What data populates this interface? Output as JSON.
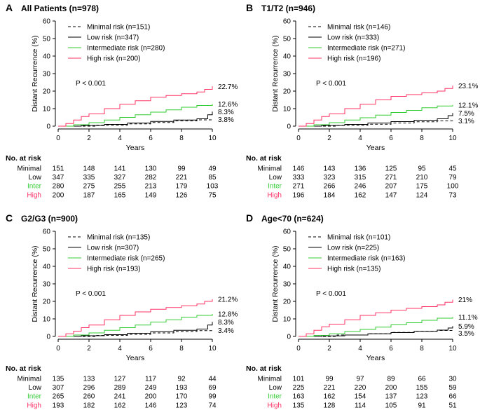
{
  "risk_table_title": "No. at risk",
  "pvalue": "P < 0.001",
  "colors": {
    "minimal": "#000000",
    "low": "#000000",
    "inter": "#33cc33",
    "high": "#ff3366"
  },
  "chart_data": [
    {
      "type": "line",
      "panel": "A",
      "title": "All Patients (n=978)",
      "xlabel": "Years",
      "ylabel": "Distant Recurrence (%)",
      "xlim": [
        0,
        10
      ],
      "ylim": [
        0,
        60
      ],
      "xticks": [
        "0",
        "2",
        "4",
        "6",
        "8",
        "10"
      ],
      "yticks": [
        "0",
        "10",
        "20",
        "30",
        "40",
        "50",
        "60"
      ],
      "end_labels": [
        "22.7%",
        "12.6%",
        "8.3%",
        "3.8%"
      ],
      "end_values": [
        22.7,
        12.6,
        8.3,
        3.8
      ],
      "series": [
        {
          "name": "Minimal risk (n=151)",
          "key": "minimal",
          "dash": true,
          "x": [
            0,
            2.5,
            4.5,
            6.0,
            7.5,
            9.0,
            10.0
          ],
          "y": [
            0,
            0.6,
            1.3,
            2.1,
            3.0,
            3.6,
            3.8
          ]
        },
        {
          "name": "Low risk (n=347)",
          "key": "low",
          "dash": false,
          "x": [
            0,
            1.5,
            3.0,
            4.5,
            6.0,
            7.5,
            9.0,
            9.7,
            10.0
          ],
          "y": [
            0,
            0.4,
            1.0,
            1.8,
            2.7,
            3.5,
            4.2,
            6.5,
            8.3
          ]
        },
        {
          "name": "Intermediate risk (n=280)",
          "key": "inter",
          "dash": false,
          "x": [
            0,
            1.0,
            2.0,
            3.0,
            4.0,
            5.0,
            6.0,
            7.0,
            8.0,
            9.0,
            10.0
          ],
          "y": [
            0,
            0.8,
            2.0,
            3.5,
            5.0,
            6.5,
            8.0,
            9.3,
            10.8,
            11.8,
            12.6
          ]
        },
        {
          "name": "High risk (n=200)",
          "key": "high",
          "dash": false,
          "x": [
            0,
            0.5,
            1.0,
            1.5,
            2.0,
            3.0,
            4.0,
            5.0,
            6.0,
            7.0,
            8.0,
            9.0,
            9.5,
            10.0
          ],
          "y": [
            0,
            1.5,
            3.5,
            5.5,
            7.0,
            10.0,
            12.5,
            14.5,
            16.5,
            17.5,
            18.5,
            19.5,
            21.0,
            22.7
          ]
        }
      ],
      "risk_table": [
        {
          "label": "Minimal",
          "key": "minimal",
          "values": [
            "151",
            "148",
            "141",
            "130",
            "99",
            "49"
          ]
        },
        {
          "label": "Low",
          "key": "low",
          "values": [
            "347",
            "335",
            "327",
            "282",
            "221",
            "85"
          ]
        },
        {
          "label": "Inter",
          "key": "inter",
          "values": [
            "280",
            "275",
            "255",
            "213",
            "179",
            "103"
          ]
        },
        {
          "label": "High",
          "key": "high",
          "values": [
            "200",
            "187",
            "165",
            "149",
            "126",
            "75"
          ]
        }
      ]
    },
    {
      "type": "line",
      "panel": "B",
      "title": "T1/T2 (n=946)",
      "xlabel": "Years",
      "ylabel": "Distant Recurrence (%)",
      "xlim": [
        0,
        10
      ],
      "ylim": [
        0,
        60
      ],
      "xticks": [
        "0",
        "2",
        "4",
        "6",
        "8",
        "10"
      ],
      "yticks": [
        "0",
        "10",
        "20",
        "30",
        "40",
        "50",
        "60"
      ],
      "end_labels": [
        "23.1%",
        "12.1%",
        "7.5%",
        "3.1%"
      ],
      "end_values": [
        23.1,
        12.1,
        7.5,
        3.1
      ],
      "series": [
        {
          "name": "Minimal risk (n=146)",
          "key": "minimal",
          "dash": true,
          "x": [
            0,
            2.5,
            4.5,
            6.0,
            7.5,
            9.0,
            10.0
          ],
          "y": [
            0,
            0.5,
            1.1,
            1.8,
            2.5,
            3.0,
            3.1
          ]
        },
        {
          "name": "Low risk (n=333)",
          "key": "low",
          "dash": false,
          "x": [
            0,
            1.5,
            3.0,
            4.5,
            6.0,
            7.5,
            9.0,
            9.7,
            10.0
          ],
          "y": [
            0,
            0.4,
            1.0,
            1.8,
            2.6,
            3.4,
            4.2,
            6.0,
            7.5
          ]
        },
        {
          "name": "Intermediate risk (n=271)",
          "key": "inter",
          "dash": false,
          "x": [
            0,
            1.0,
            2.0,
            3.0,
            4.0,
            5.0,
            6.0,
            7.0,
            8.0,
            9.0,
            10.0
          ],
          "y": [
            0,
            0.8,
            2.0,
            3.5,
            4.8,
            6.3,
            7.8,
            9.0,
            10.5,
            11.5,
            12.1
          ]
        },
        {
          "name": "High risk (n=196)",
          "key": "high",
          "dash": false,
          "x": [
            0,
            0.5,
            1.0,
            1.5,
            2.0,
            3.0,
            4.0,
            5.0,
            6.0,
            7.0,
            8.0,
            9.0,
            9.5,
            10.0
          ],
          "y": [
            0,
            1.5,
            3.5,
            5.5,
            7.0,
            10.0,
            12.5,
            15.0,
            17.0,
            18.0,
            19.0,
            20.0,
            21.5,
            23.1
          ]
        }
      ],
      "risk_table": [
        {
          "label": "Minimal",
          "key": "minimal",
          "values": [
            "146",
            "143",
            "136",
            "125",
            "95",
            "45"
          ]
        },
        {
          "label": "Low",
          "key": "low",
          "values": [
            "333",
            "323",
            "315",
            "271",
            "210",
            "79"
          ]
        },
        {
          "label": "Inter",
          "key": "inter",
          "values": [
            "271",
            "266",
            "246",
            "207",
            "175",
            "100"
          ]
        },
        {
          "label": "High",
          "key": "high",
          "values": [
            "196",
            "184",
            "162",
            "147",
            "124",
            "73"
          ]
        }
      ]
    },
    {
      "type": "line",
      "panel": "C",
      "title": "G2/G3 (n=900)",
      "xlabel": "Years",
      "ylabel": "Distant Recurrence (%)",
      "xlim": [
        0,
        10
      ],
      "ylim": [
        0,
        60
      ],
      "xticks": [
        "0",
        "2",
        "4",
        "6",
        "8",
        "10"
      ],
      "yticks": [
        "0",
        "10",
        "20",
        "30",
        "40",
        "50",
        "60"
      ],
      "end_labels": [
        "21.2%",
        "12.8%",
        "8.3%",
        "3.4%"
      ],
      "end_values": [
        21.2,
        12.8,
        8.3,
        3.4
      ],
      "series": [
        {
          "name": "Minimal risk (n=135)",
          "key": "minimal",
          "dash": true,
          "x": [
            0,
            2.5,
            4.5,
            6.0,
            7.5,
            9.0,
            10.0
          ],
          "y": [
            0,
            0.6,
            1.2,
            2.0,
            2.8,
            3.3,
            3.4
          ]
        },
        {
          "name": "Low risk (n=307)",
          "key": "low",
          "dash": false,
          "x": [
            0,
            1.5,
            3.0,
            4.5,
            6.0,
            7.5,
            9.0,
            9.7,
            10.0
          ],
          "y": [
            0,
            0.4,
            1.0,
            1.8,
            2.7,
            3.5,
            4.2,
            6.5,
            8.3
          ]
        },
        {
          "name": "Intermediate risk (n=265)",
          "key": "inter",
          "dash": false,
          "x": [
            0,
            1.0,
            2.0,
            3.0,
            4.0,
            5.0,
            6.0,
            7.0,
            8.0,
            9.0,
            10.0
          ],
          "y": [
            0,
            0.8,
            2.0,
            3.5,
            5.0,
            6.5,
            8.2,
            9.5,
            11.0,
            12.0,
            12.8
          ]
        },
        {
          "name": "High risk (n=193)",
          "key": "high",
          "dash": false,
          "x": [
            0,
            0.5,
            1.0,
            1.5,
            2.0,
            3.0,
            4.0,
            5.0,
            6.0,
            7.0,
            8.0,
            9.0,
            9.5,
            10.0
          ],
          "y": [
            0,
            1.5,
            3.0,
            5.0,
            6.5,
            9.5,
            12.0,
            14.0,
            15.5,
            16.5,
            17.5,
            18.5,
            20.0,
            21.2
          ]
        }
      ],
      "risk_table": [
        {
          "label": "Minimal",
          "key": "minimal",
          "values": [
            "135",
            "133",
            "127",
            "117",
            "92",
            "44"
          ]
        },
        {
          "label": "Low",
          "key": "low",
          "values": [
            "307",
            "296",
            "289",
            "249",
            "193",
            "69"
          ]
        },
        {
          "label": "Inter",
          "key": "inter",
          "values": [
            "265",
            "260",
            "241",
            "200",
            "170",
            "99"
          ]
        },
        {
          "label": "High",
          "key": "high",
          "values": [
            "193",
            "182",
            "162",
            "146",
            "123",
            "74"
          ]
        }
      ]
    },
    {
      "type": "line",
      "panel": "D",
      "title": "Age<70 (n=624)",
      "xlabel": "Years",
      "ylabel": "Distant Recurrence (%)",
      "xlim": [
        0,
        10
      ],
      "ylim": [
        0,
        60
      ],
      "xticks": [
        "0",
        "2",
        "4",
        "6",
        "8",
        "10"
      ],
      "yticks": [
        "0",
        "10",
        "20",
        "30",
        "40",
        "50",
        "60"
      ],
      "end_labels": [
        "21%",
        "11.1%",
        "5.9%",
        "3.5%"
      ],
      "end_values": [
        21.0,
        11.1,
        5.9,
        3.5
      ],
      "series": [
        {
          "name": "Minimal risk (n=101)",
          "key": "minimal",
          "dash": true,
          "x": [
            0,
            2.5,
            4.5,
            6.0,
            7.5,
            9.0,
            10.0
          ],
          "y": [
            0,
            0.8,
            1.5,
            2.3,
            3.0,
            3.4,
            3.5
          ]
        },
        {
          "name": "Low risk (n=225)",
          "key": "low",
          "dash": false,
          "x": [
            0,
            1.5,
            3.0,
            4.5,
            6.0,
            7.5,
            9.0,
            9.7,
            10.0
          ],
          "y": [
            0,
            0.3,
            0.8,
            1.5,
            2.2,
            2.9,
            3.6,
            4.8,
            5.9
          ]
        },
        {
          "name": "Intermediate risk (n=163)",
          "key": "inter",
          "dash": false,
          "x": [
            0,
            1.0,
            2.0,
            3.0,
            4.0,
            5.0,
            6.0,
            7.0,
            8.0,
            9.0,
            10.0
          ],
          "y": [
            0,
            0.6,
            1.5,
            2.8,
            4.0,
            5.3,
            6.6,
            7.8,
            9.2,
            10.4,
            11.1
          ]
        },
        {
          "name": "High risk (n=135)",
          "key": "high",
          "dash": false,
          "x": [
            0,
            0.5,
            1.0,
            1.5,
            2.0,
            3.0,
            4.0,
            5.0,
            6.0,
            7.0,
            8.0,
            9.0,
            9.5,
            10.0
          ],
          "y": [
            0,
            1.5,
            3.5,
            5.5,
            7.0,
            9.5,
            12.0,
            13.5,
            15.0,
            16.0,
            17.0,
            18.0,
            19.5,
            21.0
          ]
        }
      ],
      "risk_table": [
        {
          "label": "Minimal",
          "key": "minimal",
          "values": [
            "101",
            "99",
            "97",
            "89",
            "66",
            "30"
          ]
        },
        {
          "label": "Low",
          "key": "low",
          "values": [
            "225",
            "221",
            "220",
            "200",
            "155",
            "59"
          ]
        },
        {
          "label": "Inter",
          "key": "inter",
          "values": [
            "163",
            "162",
            "154",
            "137",
            "123",
            "66"
          ]
        },
        {
          "label": "High",
          "key": "high",
          "values": [
            "135",
            "128",
            "114",
            "105",
            "91",
            "51"
          ]
        }
      ]
    }
  ]
}
